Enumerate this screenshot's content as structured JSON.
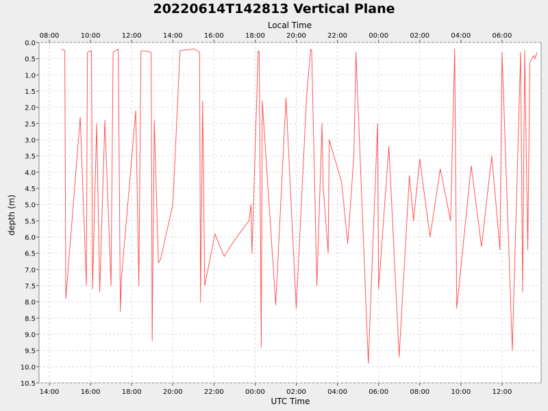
{
  "chart_data": {
    "type": "line",
    "title": "20220614T142813 Vertical Plane",
    "x_top_label": "Local Time",
    "xlabel": "UTC Time",
    "ylabel": "depth (m)",
    "ylim": [
      0.0,
      10.5
    ],
    "y_inverted": true,
    "xlim_hours": [
      13.5,
      37.9
    ],
    "x_ticks_utc": [
      "14:00",
      "16:00",
      "18:00",
      "20:00",
      "22:00",
      "00:00",
      "02:00",
      "04:00",
      "06:00",
      "08:00",
      "10:00",
      "12:00"
    ],
    "x_ticks_local": [
      "08:00",
      "10:00",
      "12:00",
      "14:00",
      "16:00",
      "18:00",
      "20:00",
      "22:00",
      "00:00",
      "02:00",
      "04:00",
      "06:00"
    ],
    "y_ticks": [
      "0.0",
      "0.5",
      "1.0",
      "1.5",
      "2.0",
      "2.5",
      "3.0",
      "3.5",
      "4.0",
      "4.5",
      "5.0",
      "5.5",
      "6.0",
      "6.5",
      "7.0",
      "7.5",
      "8.0",
      "8.5",
      "9.0",
      "9.5",
      "10.0",
      "10.5"
    ],
    "grid": true,
    "series": [
      {
        "color": "#ff5555",
        "x": [
          14.6,
          14.75,
          14.8,
          15.5,
          15.8,
          15.85,
          16.05,
          16.1,
          16.3,
          16.45,
          16.7,
          17.0,
          17.1,
          17.35,
          17.45,
          17.5,
          18.2,
          18.35,
          18.45,
          18.5,
          18.95,
          19.0,
          19.1,
          19.3,
          19.4,
          20.0,
          20.35,
          20.4,
          21.05,
          21.3,
          21.35,
          21.45,
          21.55,
          22.05,
          22.1,
          22.5,
          23.0,
          23.7,
          23.8,
          23.85,
          24.15,
          24.2,
          24.3,
          24.35,
          25.0,
          25.5,
          26.0,
          26.5,
          26.7,
          26.75,
          27.0,
          27.25,
          27.3,
          27.55,
          27.6,
          28.2,
          28.5,
          28.8,
          28.9,
          29.5,
          29.95,
          30.0,
          30.5,
          31.0,
          31.5,
          31.7,
          32.0,
          32.5,
          33.0,
          33.5,
          33.7,
          33.8,
          34.5,
          35.0,
          35.5,
          35.9,
          36.0,
          36.5,
          36.9,
          37.0,
          37.1,
          37.25,
          37.35,
          37.55,
          37.6,
          37.7
        ],
        "y": [
          0.2,
          0.25,
          7.9,
          2.3,
          7.5,
          0.3,
          0.25,
          7.6,
          2.5,
          7.7,
          2.4,
          7.5,
          0.3,
          0.2,
          8.3,
          7.3,
          2.1,
          7.5,
          0.3,
          0.25,
          0.3,
          9.2,
          2.4,
          6.8,
          6.7,
          5.0,
          0.25,
          0.25,
          0.2,
          0.3,
          8.0,
          1.8,
          7.5,
          5.9,
          6.0,
          6.6,
          6.1,
          5.5,
          5.0,
          6.5,
          0.25,
          0.3,
          9.4,
          1.8,
          8.1,
          1.7,
          8.2,
          1.7,
          0.2,
          0.25,
          7.5,
          2.5,
          4.4,
          6.5,
          3.0,
          4.3,
          6.2,
          3.5,
          0.3,
          9.9,
          2.5,
          7.6,
          3.2,
          9.7,
          4.1,
          5.5,
          3.6,
          6.0,
          3.9,
          5.5,
          0.2,
          8.2,
          3.8,
          6.3,
          3.5,
          6.4,
          0.3,
          9.5,
          0.3,
          7.7,
          0.25,
          6.4,
          0.6,
          0.4,
          0.5,
          0.3
        ]
      }
    ]
  }
}
